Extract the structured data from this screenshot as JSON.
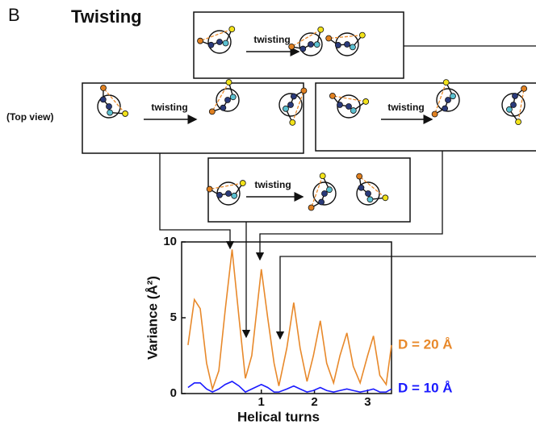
{
  "panel_label": "B",
  "title": "Twisting",
  "view_label": "(Top view)",
  "arrow_labels": [
    "twisting",
    "twisting",
    "twisting",
    "twisting"
  ],
  "chart_data": {
    "type": "line",
    "x_label": "Helical turns",
    "y_label": "Variance (Å²)",
    "xlim": [
      -0.5,
      3.45
    ],
    "xticks": [
      1,
      2,
      3
    ],
    "ylim": [
      0,
      10
    ],
    "yticks": [
      0,
      5,
      10
    ],
    "x": [
      -0.38,
      -0.26,
      -0.15,
      -0.03,
      0.08,
      0.2,
      0.32,
      0.45,
      0.58,
      0.7,
      0.82,
      1.0,
      1.12,
      1.24,
      1.33,
      1.48,
      1.61,
      1.73,
      1.86,
      1.98,
      2.11,
      2.23,
      2.36,
      2.48,
      2.61,
      2.73,
      2.86,
      3.0,
      3.11,
      3.23,
      3.35,
      3.45
    ],
    "series": [
      {
        "name": "D = 20 Å",
        "color": "#e8892b",
        "values": [
          3.2,
          6.2,
          5.6,
          2,
          0.3,
          1.5,
          5.5,
          9.5,
          5,
          1,
          2.5,
          8.2,
          5,
          2,
          0.5,
          3,
          6,
          3,
          0.8,
          2.5,
          4.8,
          2,
          0.7,
          2.5,
          4,
          1.8,
          0.7,
          2.5,
          3.8,
          1.2,
          0.6,
          3.2
        ]
      },
      {
        "name": "D = 10 Å",
        "color": "#1a1aff",
        "values": [
          0.4,
          0.7,
          0.7,
          0.3,
          0.1,
          0.3,
          0.6,
          0.8,
          0.5,
          0.1,
          0.3,
          0.6,
          0.4,
          0.1,
          0.1,
          0.3,
          0.5,
          0.3,
          0.1,
          0.2,
          0.4,
          0.2,
          0.1,
          0.2,
          0.3,
          0.2,
          0.1,
          0.2,
          0.3,
          0.1,
          0.1,
          0.3
        ]
      }
    ]
  }
}
